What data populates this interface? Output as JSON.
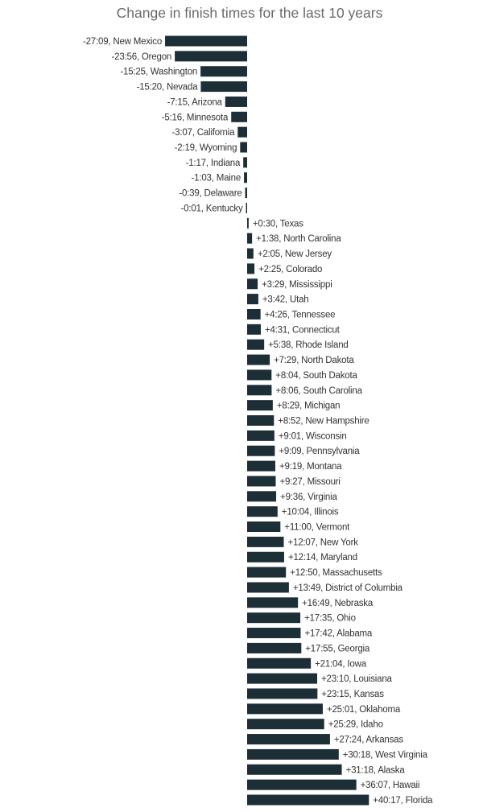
{
  "chart_data": {
    "type": "bar",
    "orientation": "horizontal",
    "title": "Change in finish times for the last 10 years",
    "bar_color": "#1c2f36",
    "grid": false,
    "value_format": "m:ss",
    "rows": [
      {
        "value": "-27:09",
        "state": "New Mexico"
      },
      {
        "value": "-23:56",
        "state": "Oregon"
      },
      {
        "value": "-15:25",
        "state": "Washington"
      },
      {
        "value": "-15:20",
        "state": "Nevada"
      },
      {
        "value": "-7:15",
        "state": "Arizona"
      },
      {
        "value": "-5:16",
        "state": "Minnesota"
      },
      {
        "value": "-3:07",
        "state": "California"
      },
      {
        "value": "-2:19",
        "state": "Wyoming"
      },
      {
        "value": "-1:17",
        "state": "Indiana"
      },
      {
        "value": "-1:03",
        "state": "Maine"
      },
      {
        "value": "-0:39",
        "state": "Delaware"
      },
      {
        "value": "-0:01",
        "state": "Kentucky"
      },
      {
        "value": "+0:30",
        "state": "Texas"
      },
      {
        "value": "+1:38",
        "state": "North Carolina"
      },
      {
        "value": "+2:05",
        "state": "New Jersey"
      },
      {
        "value": "+2:25",
        "state": "Colorado"
      },
      {
        "value": "+3:29",
        "state": "Mississippi"
      },
      {
        "value": "+3:42",
        "state": "Utah"
      },
      {
        "value": "+4:26",
        "state": "Tennessee"
      },
      {
        "value": "+4:31",
        "state": "Connecticut"
      },
      {
        "value": "+5:38",
        "state": "Rhode Island"
      },
      {
        "value": "+7:29",
        "state": "North Dakota"
      },
      {
        "value": "+8:04",
        "state": "South Dakota"
      },
      {
        "value": "+8:06",
        "state": "South Carolina"
      },
      {
        "value": "+8:29",
        "state": "Michigan"
      },
      {
        "value": "+8:52",
        "state": "New Hampshire"
      },
      {
        "value": "+9:01",
        "state": "Wisconsin"
      },
      {
        "value": "+9:09",
        "state": "Pennsylvania"
      },
      {
        "value": "+9:19",
        "state": "Montana"
      },
      {
        "value": "+9:27",
        "state": "Missouri"
      },
      {
        "value": "+9:36",
        "state": "Virginia"
      },
      {
        "value": "+10:04",
        "state": "Illinois"
      },
      {
        "value": "+11:00",
        "state": "Vermont"
      },
      {
        "value": "+12:07",
        "state": "New York"
      },
      {
        "value": "+12:14",
        "state": "Maryland"
      },
      {
        "value": "+12:50",
        "state": "Massachusetts"
      },
      {
        "value": "+13:49",
        "state": "District of Columbia"
      },
      {
        "value": "+16:49",
        "state": "Nebraska"
      },
      {
        "value": "+17:35",
        "state": "Ohio"
      },
      {
        "value": "+17:42",
        "state": "Alabama"
      },
      {
        "value": "+17:55",
        "state": "Georgia"
      },
      {
        "value": "+21:04",
        "state": "Iowa"
      },
      {
        "value": "+23:10",
        "state": "Louisiana"
      },
      {
        "value": "+23:15",
        "state": "Kansas"
      },
      {
        "value": "+25:01",
        "state": "Oklahoma"
      },
      {
        "value": "+25:29",
        "state": "Idaho"
      },
      {
        "value": "+27:24",
        "state": "Arkansas"
      },
      {
        "value": "+30:18",
        "state": "West Virginia"
      },
      {
        "value": "+31:18",
        "state": "Alaska"
      },
      {
        "value": "+36:07",
        "state": "Hawaii"
      },
      {
        "value": "+40:17",
        "state": "Florida"
      }
    ]
  }
}
